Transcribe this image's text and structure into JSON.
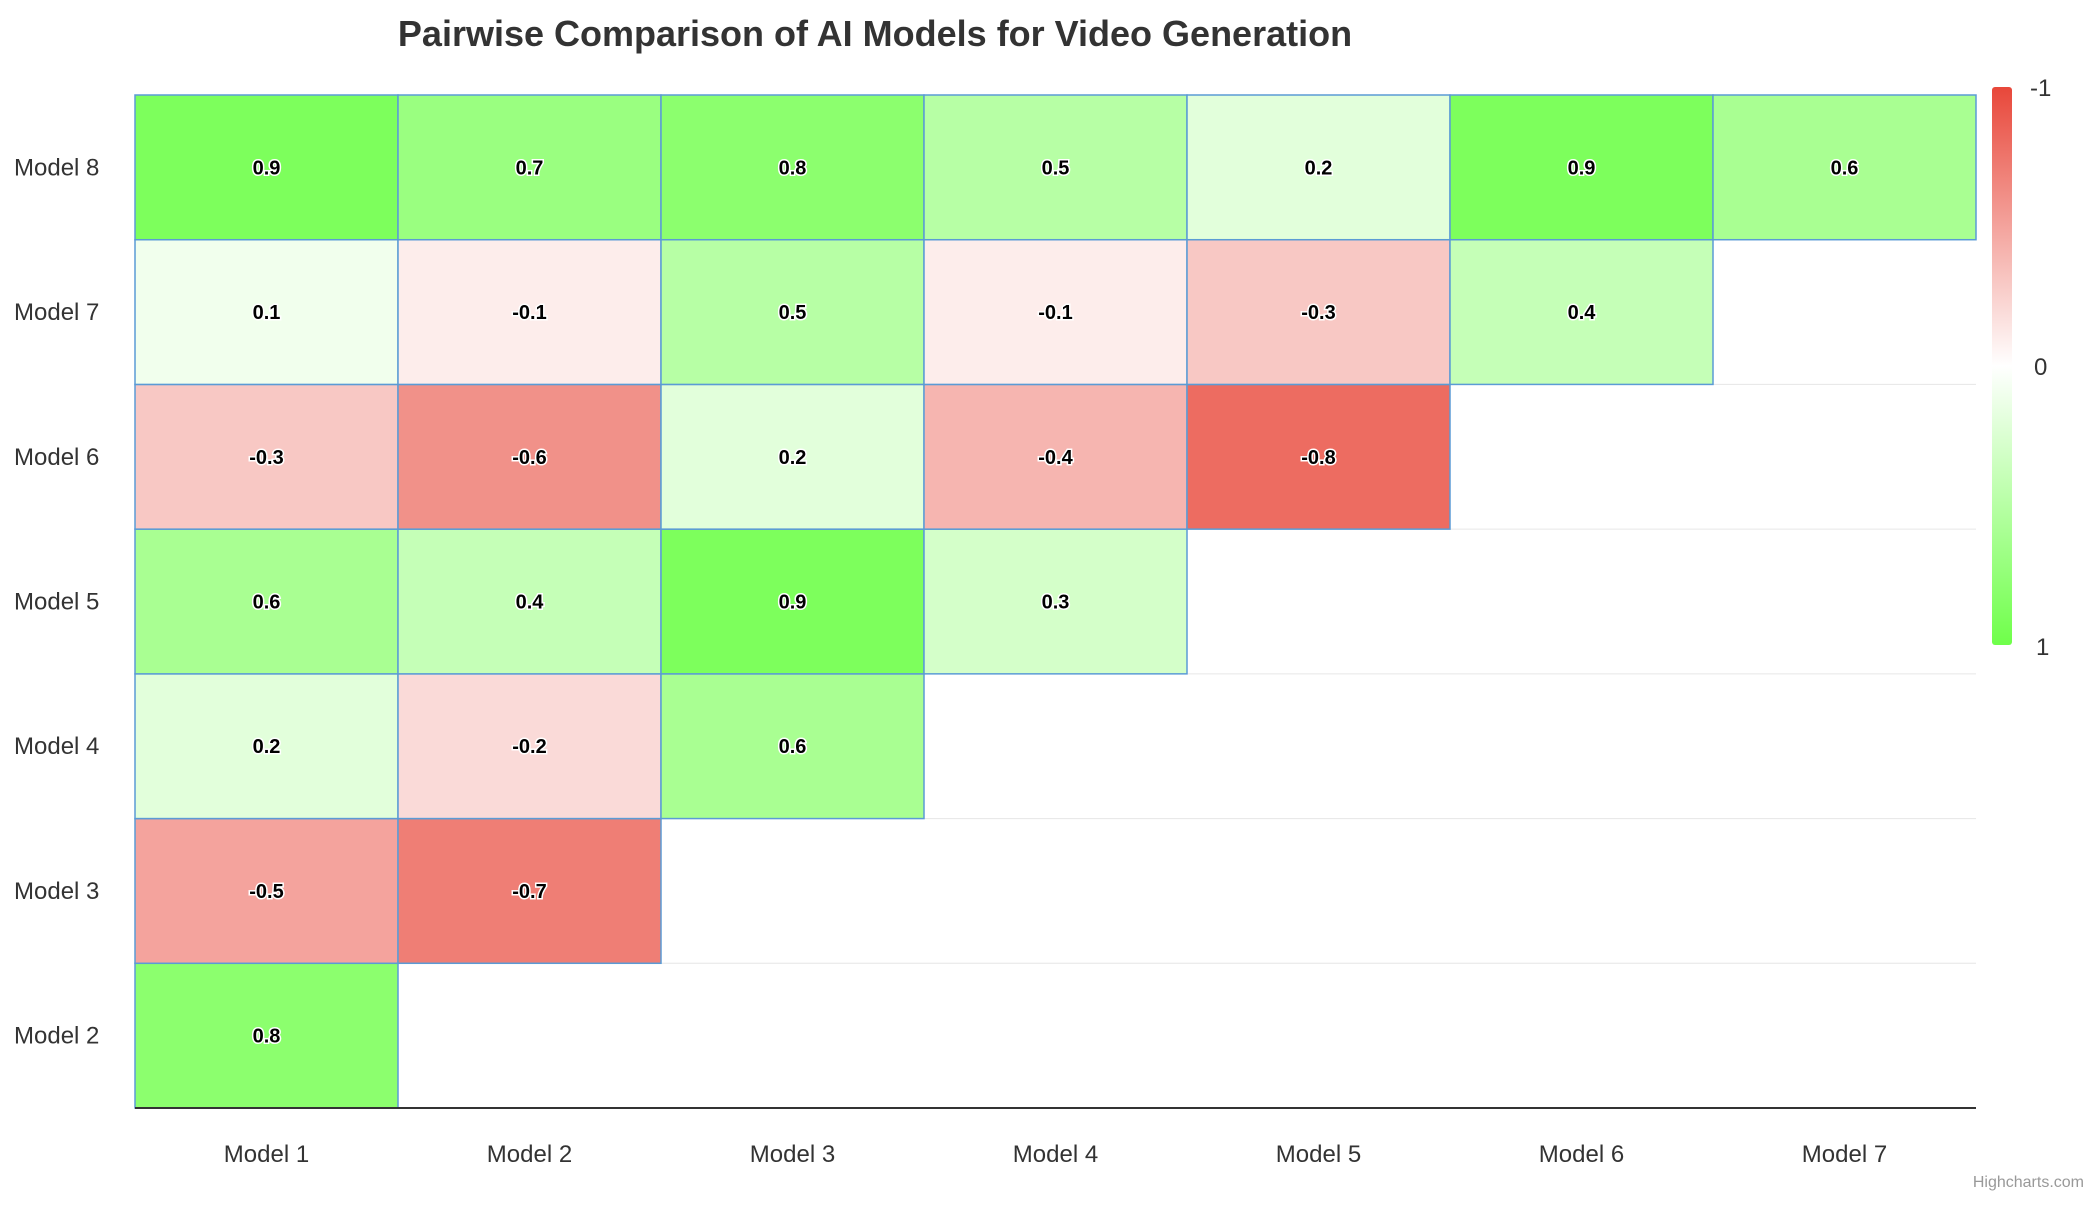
{
  "chart_data": {
    "type": "heatmap",
    "title": "Pairwise Comparison of AI Models for Video Generation",
    "x_categories": [
      "Model 1",
      "Model 2",
      "Model 3",
      "Model 4",
      "Model 5",
      "Model 6",
      "Model 7"
    ],
    "y_categories": [
      "Model 2",
      "Model 3",
      "Model 4",
      "Model 5",
      "Model 6",
      "Model 7",
      "Model 8"
    ],
    "rows": [
      {
        "model": "Model 2",
        "values": [
          0.8
        ]
      },
      {
        "model": "Model 3",
        "values": [
          -0.5,
          -0.7
        ]
      },
      {
        "model": "Model 4",
        "values": [
          0.2,
          -0.2,
          0.6
        ]
      },
      {
        "model": "Model 5",
        "values": [
          0.6,
          0.4,
          0.9,
          0.3
        ]
      },
      {
        "model": "Model 6",
        "values": [
          -0.3,
          -0.6,
          0.2,
          -0.4,
          -0.8
        ]
      },
      {
        "model": "Model 7",
        "values": [
          0.1,
          -0.1,
          0.5,
          -0.1,
          -0.3,
          0.4
        ]
      },
      {
        "model": "Model 8",
        "values": [
          0.9,
          0.7,
          0.8,
          0.5,
          0.2,
          0.9,
          0.6
        ]
      }
    ],
    "color_axis": {
      "min": -1,
      "max": 1,
      "tick_labels": [
        "-1",
        "0",
        "1"
      ],
      "min_color": "#e8473a",
      "mid_color": "#ffffff",
      "max_color": "#6fff4a",
      "position": "right"
    },
    "cell_border_color": "#5b9bd5",
    "grid": true,
    "credit": "Highcharts.com"
  }
}
